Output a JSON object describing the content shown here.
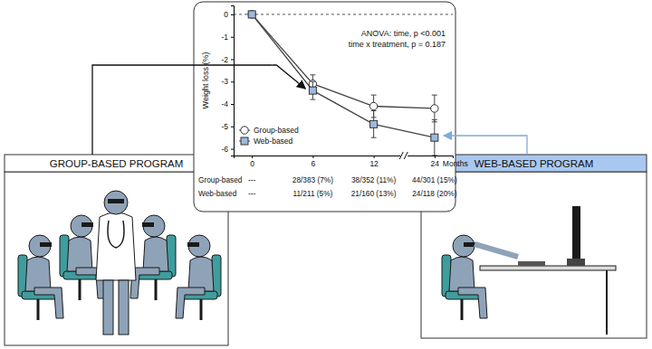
{
  "chart_data": {
    "type": "line",
    "categories": [
      "0",
      "6",
      "12",
      "24"
    ],
    "x_label": "Months",
    "y_label": "Weight loss (%)",
    "ylim": [
      -6.3,
      0.4
    ],
    "yticks": [
      0,
      -1,
      -2,
      -3,
      -4,
      -5,
      -6
    ],
    "legend": "lower left",
    "annotations": [
      "ANOVA: time, p <0.001",
      "time x treatment, p = 0.187"
    ],
    "series": [
      {
        "name": "Group-based",
        "color": "#ffffff",
        "marker": "circle",
        "line_style": "solid",
        "values": [
          0,
          -3.1,
          -4.1,
          -4.2
        ],
        "errors": [
          0,
          0.4,
          0.5,
          0.6
        ]
      },
      {
        "name": "Web-based",
        "color": "#9db9dd",
        "marker": "square",
        "line_style": "solid",
        "values": [
          0,
          -3.4,
          -4.9,
          -5.5
        ],
        "errors": [
          0,
          0.4,
          0.6,
          0.8
        ]
      }
    ]
  },
  "table": {
    "rows": [
      {
        "label": "Group-based",
        "cells": [
          "---",
          "28/383 (7%)",
          "38/352 (11%)",
          "44/301 (15%)"
        ]
      },
      {
        "label": "Web-based",
        "cells": [
          "---",
          "11/211 (5%)",
          "21/160 (13%)",
          "24/118 (20%)"
        ]
      }
    ]
  },
  "panels": {
    "left": "GROUP-BASED PROGRAM",
    "right": "WEB-BASED PROGRAM"
  }
}
